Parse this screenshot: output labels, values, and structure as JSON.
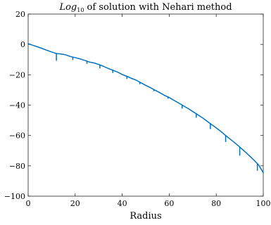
{
  "chart_data": {
    "type": "line",
    "title_main": "Log",
    "title_sub": "10",
    "title_rest": " of solution with Nehari method",
    "xlabel": "Radius",
    "ylabel": "",
    "xlim": [
      0,
      100
    ],
    "ylim": [
      -100,
      20
    ],
    "x_ticks": [
      0,
      20,
      40,
      60,
      80,
      100
    ],
    "y_ticks": [
      20,
      0,
      -20,
      -40,
      -60,
      -80,
      -100
    ],
    "grid": false,
    "line_color": "#0072BD",
    "series": [
      {
        "x": [
          0,
          2,
          4,
          6,
          8,
          10,
          12,
          14,
          16,
          18,
          20,
          22,
          24,
          26,
          28,
          30,
          32,
          34,
          36,
          38,
          40,
          42,
          44,
          46,
          48,
          50,
          52,
          54,
          56,
          58,
          60,
          62,
          64,
          66,
          68,
          70,
          72,
          74,
          76,
          78,
          80,
          82,
          84,
          86,
          88,
          90,
          92,
          94,
          96,
          98,
          100
        ],
        "values": [
          0.5,
          -0.6,
          -1.6,
          -2.7,
          -3.9,
          -5.0,
          -6.0,
          -6.3,
          -6.9,
          -8.0,
          -8.7,
          -9.5,
          -10.5,
          -11.6,
          -12.2,
          -13.2,
          -14.4,
          -15.8,
          -17.0,
          -18.2,
          -19.8,
          -21.0,
          -22.4,
          -23.6,
          -25.3,
          -27.0,
          -28.5,
          -30.2,
          -31.8,
          -33.6,
          -35.0,
          -36.8,
          -38.6,
          -40.4,
          -42.2,
          -44.2,
          -46.2,
          -48.2,
          -50.5,
          -52.8,
          -55.0,
          -57.4,
          -60.0,
          -62.5,
          -65.0,
          -67.6,
          -70.4,
          -73.2,
          -76.2,
          -79.4,
          -84.5
        ]
      }
    ],
    "dips": [
      {
        "x": 12.0,
        "depth": -10.5
      },
      {
        "x": 19.0,
        "depth": -10.0
      },
      {
        "x": 25.0,
        "depth": -12.5
      },
      {
        "x": 30.5,
        "depth": -15.5
      },
      {
        "x": 36.0,
        "depth": -18.5
      },
      {
        "x": 42.0,
        "depth": -22.5
      },
      {
        "x": 47.5,
        "depth": -26.0
      },
      {
        "x": 53.5,
        "depth": -30.5
      },
      {
        "x": 59.5,
        "depth": -35.5
      },
      {
        "x": 65.5,
        "depth": -42.0
      },
      {
        "x": 71.5,
        "depth": -48.0
      },
      {
        "x": 77.5,
        "depth": -55.5
      },
      {
        "x": 84.0,
        "depth": -64.0
      },
      {
        "x": 90.0,
        "depth": -73.0
      },
      {
        "x": 97.5,
        "depth": -83.0
      }
    ]
  }
}
